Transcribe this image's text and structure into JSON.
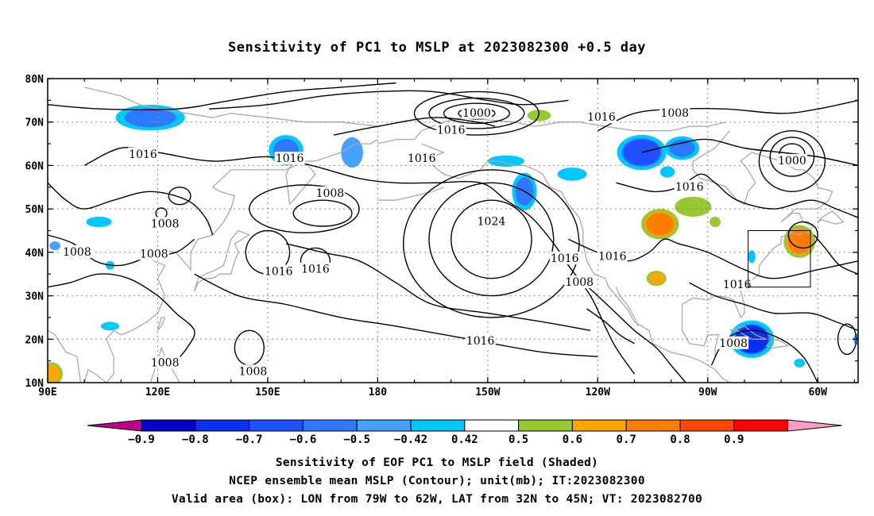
{
  "title": "Sensitivity of PC1 to MSLP at 2023082300 +0.5 day",
  "map": {
    "lat_ticks": [
      "80N",
      "70N",
      "60N",
      "50N",
      "40N",
      "30N",
      "20N",
      "10N"
    ],
    "lon_ticks": [
      "90E",
      "120E",
      "150E",
      "180",
      "150W",
      "120W",
      "90W",
      "60W"
    ],
    "valid_box": {
      "lon_west": -79,
      "lon_east": -62,
      "lat_south": 32,
      "lat_north": 45
    },
    "contour_labels": [
      {
        "text": "1000",
        "lon": -153,
        "lat": 72
      },
      {
        "text": "1016",
        "lon": -160,
        "lat": 68
      },
      {
        "text": "1016",
        "lon": -119,
        "lat": 71
      },
      {
        "text": "1008",
        "lon": -99,
        "lat": 72
      },
      {
        "text": "1016",
        "lon": 116,
        "lat": 62.5
      },
      {
        "text": "1016",
        "lon": 156,
        "lat": 61.5
      },
      {
        "text": "1016",
        "lon": -168,
        "lat": 61.5
      },
      {
        "text": "1000",
        "lon": -67,
        "lat": 61
      },
      {
        "text": "1016",
        "lon": -95,
        "lat": 55
      },
      {
        "text": "1008",
        "lon": 167,
        "lat": 53.5
      },
      {
        "text": "1024",
        "lon": -149,
        "lat": 47
      },
      {
        "text": "1008",
        "lon": 122,
        "lat": 46.5
      },
      {
        "text": "1008",
        "lon": 98,
        "lat": 40
      },
      {
        "text": "1008",
        "lon": 119,
        "lat": 39.5
      },
      {
        "text": "1016",
        "lon": -129,
        "lat": 38.5
      },
      {
        "text": "1016",
        "lon": -116,
        "lat": 39
      },
      {
        "text": "1016",
        "lon": 153,
        "lat": 35.5
      },
      {
        "text": "1016",
        "lon": 163,
        "lat": 36
      },
      {
        "text": "1008",
        "lon": -125,
        "lat": 33
      },
      {
        "text": "1016",
        "lon": -82,
        "lat": 32.5
      },
      {
        "text": "1016",
        "lon": -152,
        "lat": 19.5
      },
      {
        "text": "1008",
        "lon": -83,
        "lat": 19
      },
      {
        "text": "1008",
        "lon": 122,
        "lat": 14.5
      },
      {
        "text": "1008",
        "lon": 146,
        "lat": 12.5
      }
    ],
    "shaded_regions": [
      {
        "lon": 118,
        "lat": 71,
        "rx": 7,
        "ry": 2.2,
        "value": -0.6
      },
      {
        "lon": 155,
        "lat": 63.5,
        "rx": 3.5,
        "ry": 2.6,
        "value": -0.6
      },
      {
        "lon": 173,
        "lat": 63,
        "rx": 3,
        "ry": 3.5,
        "value": -0.5
      },
      {
        "lon": -150,
        "lat": 70.5,
        "rx": 1,
        "ry": 0.6,
        "value": 0.42
      },
      {
        "lon": -136,
        "lat": 71.5,
        "rx": 3.2,
        "ry": 1.3,
        "value": 0.5
      },
      {
        "lon": -145,
        "lat": 61,
        "rx": 5,
        "ry": 1.3,
        "value": -0.42
      },
      {
        "lon": -140,
        "lat": 54,
        "rx": 2.5,
        "ry": 3.2,
        "value": -0.6
      },
      {
        "lon": -127,
        "lat": 58,
        "rx": 4,
        "ry": 1.5,
        "value": -0.42
      },
      {
        "lon": -108,
        "lat": 63,
        "rx": 5,
        "ry": 3,
        "value": -0.7
      },
      {
        "lon": -97,
        "lat": 64,
        "rx": 3.5,
        "ry": 2,
        "value": -0.6
      },
      {
        "lon": -101,
        "lat": 58.5,
        "rx": 2,
        "ry": 1.3,
        "value": -0.42
      },
      {
        "lon": -94,
        "lat": 50.5,
        "rx": 5,
        "ry": 2.3,
        "value": 0.5
      },
      {
        "lon": -103,
        "lat": 46.5,
        "rx": 3.8,
        "ry": 2.6,
        "value": 0.7
      },
      {
        "lon": -88,
        "lat": 47,
        "rx": 1.5,
        "ry": 1.2,
        "value": 0.5
      },
      {
        "lon": -65,
        "lat": 42.5,
        "rx": 3.2,
        "ry": 2.8,
        "value": 0.7
      },
      {
        "lon": -104,
        "lat": 34,
        "rx": 2,
        "ry": 1.3,
        "value": 0.6
      },
      {
        "lon": -78,
        "lat": 20,
        "rx": 4.5,
        "ry": 3.2,
        "value": -0.8
      },
      {
        "lon": -78,
        "lat": 39,
        "rx": 1,
        "ry": 1.5,
        "value": -0.42
      },
      {
        "lon": -49,
        "lat": 20,
        "rx": 1.3,
        "ry": 1.3,
        "value": -0.5
      },
      {
        "lon": -65,
        "lat": 14.5,
        "rx": 1.5,
        "ry": 1,
        "value": -0.42
      },
      {
        "lon": 104,
        "lat": 47,
        "rx": 3.5,
        "ry": 1.2,
        "value": -0.42
      },
      {
        "lon": 92,
        "lat": 41.5,
        "rx": 1.5,
        "ry": 1,
        "value": -0.5
      },
      {
        "lon": 107,
        "lat": 37,
        "rx": 1.2,
        "ry": 1,
        "value": -0.42
      },
      {
        "lon": 107,
        "lat": 23,
        "rx": 2.5,
        "ry": 1,
        "value": -0.42
      },
      {
        "lon": 91,
        "lat": 12,
        "rx": 2.3,
        "ry": 2,
        "value": 0.6
      }
    ]
  },
  "colorbar": {
    "colors": [
      "#be008c",
      "#0000c8",
      "#0a2ff0",
      "#1e50ff",
      "#2d78ff",
      "#46a0ff",
      "#00c8ff",
      "#ffffff",
      "#96c832",
      "#ffa500",
      "#ff7d00",
      "#ff4600",
      "#ff0000",
      "#ff9bc8"
    ],
    "labels": [
      "−0.9",
      "−0.8",
      "−0.7",
      "−0.6",
      "−0.5",
      "−0.42",
      "0.42",
      "0.5",
      "0.6",
      "0.7",
      "0.8",
      "0.9"
    ]
  },
  "footer": {
    "line1": "Sensitivity of EOF PC1 to MSLP field (Shaded)",
    "line2": "NCEP ensemble mean MSLP (Contour); unit(mb); IT:2023082300",
    "line3": "Valid area (box): LON from 79W to 62W, LAT from 32N to 45N; VT: 2023082700"
  }
}
